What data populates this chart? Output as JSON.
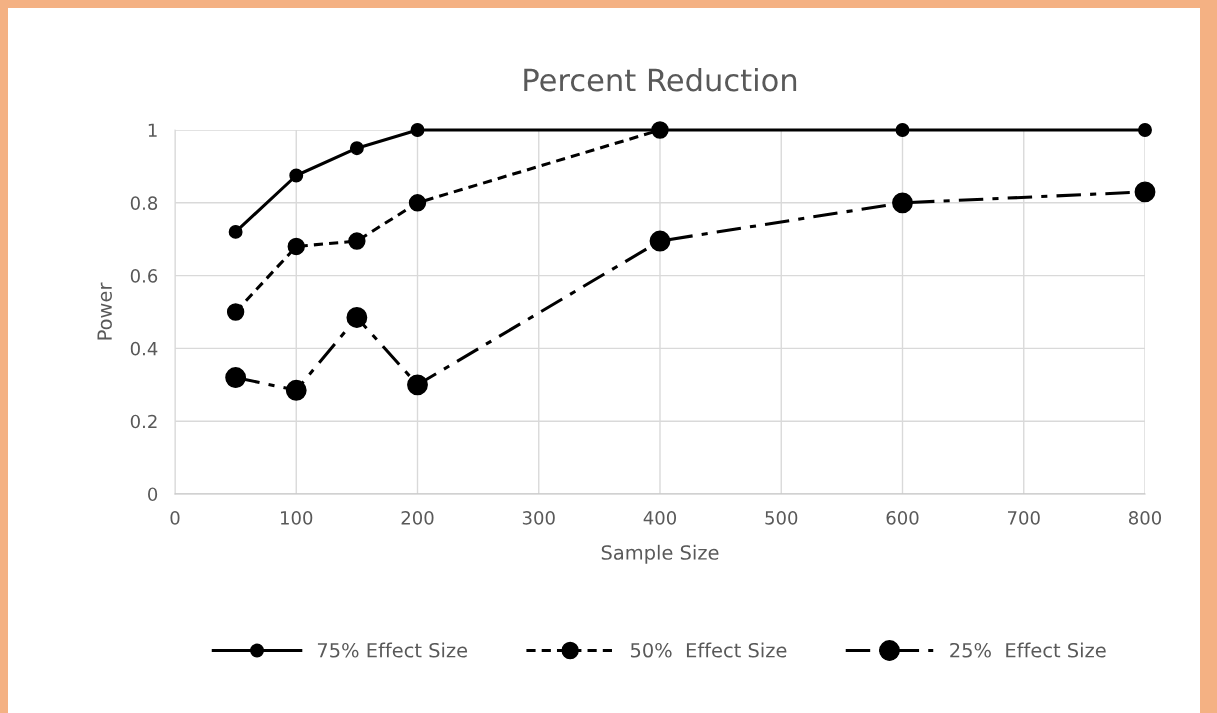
{
  "chart_data": {
    "type": "line",
    "title": "Percent Reduction",
    "xlabel": "Sample Size",
    "ylabel": "Power",
    "x": [
      50,
      100,
      150,
      200,
      400,
      600,
      800
    ],
    "series": [
      {
        "name": "75% Effect Size",
        "color": "#000000",
        "line_style": "solid",
        "values": [
          0.72,
          0.875,
          0.95,
          1,
          1,
          1,
          1
        ]
      },
      {
        "name": "50%  Effect Size",
        "color": "#000000",
        "line_style": "dashed",
        "values": [
          0.5,
          0.68,
          0.695,
          0.8,
          1,
          null,
          null
        ]
      },
      {
        "name": "25%  Effect Size",
        "color": "#000000",
        "line_style": "dashdot",
        "values": [
          0.32,
          0.285,
          0.485,
          0.3,
          0.695,
          0.8,
          0.83
        ]
      }
    ],
    "xlim": [
      0,
      800
    ],
    "xticks": [
      0,
      100,
      200,
      300,
      400,
      500,
      600,
      700,
      800
    ],
    "ylim": [
      0,
      1
    ],
    "yticks": [
      0,
      0.2,
      0.4,
      0.6,
      0.8,
      1
    ],
    "grid": true,
    "legend": "bottom",
    "marker": "circle"
  }
}
